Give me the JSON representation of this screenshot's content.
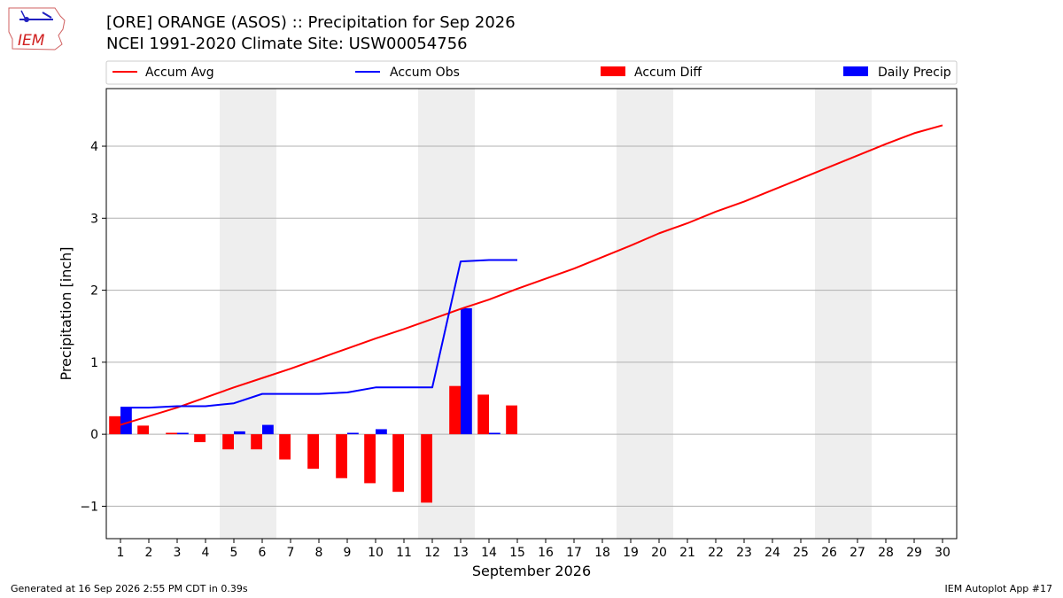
{
  "header": {
    "logo_text": "IEM",
    "title_line1": "[ORE] ORANGE (ASOS) :: Precipitation for Sep 2026",
    "title_line2": "NCEI 1991-2020 Climate Site: USW00054756"
  },
  "footer": {
    "left": "Generated at 16 Sep 2026 2:55 PM CDT in 0.39s",
    "right": "IEM Autoplot App #17"
  },
  "colors": {
    "avg": "#ff0000",
    "obs": "#0000ff",
    "diff": "#ff0000",
    "daily": "#0000ff",
    "weekend": "#eeeeee",
    "grid": "#b0b0b0"
  },
  "chart_data": {
    "type": "bar",
    "xlabel": "September 2026",
    "ylabel": "Precipitation [inch]",
    "xlim": [
      0.5,
      30.5
    ],
    "ylim": [
      -1.45,
      4.8
    ],
    "yticks": [
      -1,
      0,
      1,
      2,
      3,
      4
    ],
    "ytick_labels": [
      "−1",
      "0",
      "1",
      "2",
      "3",
      "4"
    ],
    "grid": true,
    "legend_placement": "top",
    "days": [
      1,
      2,
      3,
      4,
      5,
      6,
      7,
      8,
      9,
      10,
      11,
      12,
      13,
      14,
      15,
      16,
      17,
      18,
      19,
      20,
      21,
      22,
      23,
      24,
      25,
      26,
      27,
      28,
      29,
      30
    ],
    "weekend_days": [
      5,
      6,
      12,
      13,
      19,
      20,
      26,
      27
    ],
    "series": [
      {
        "name": "Accum Avg",
        "type": "line",
        "x": [
          1,
          2,
          3,
          4,
          5,
          6,
          7,
          8,
          9,
          10,
          11,
          12,
          13,
          14,
          15,
          16,
          17,
          18,
          19,
          20,
          21,
          22,
          23,
          24,
          25,
          26,
          27,
          28,
          29,
          30
        ],
        "values": [
          0.13,
          0.25,
          0.37,
          0.51,
          0.65,
          0.78,
          0.91,
          1.05,
          1.19,
          1.33,
          1.46,
          1.6,
          1.74,
          1.87,
          2.02,
          2.16,
          2.3,
          2.46,
          2.62,
          2.79,
          2.93,
          3.09,
          3.23,
          3.39,
          3.55,
          3.71,
          3.87,
          4.03,
          4.18,
          4.29
        ]
      },
      {
        "name": "Accum Obs",
        "type": "line",
        "x": [
          1,
          2,
          3,
          4,
          5,
          6,
          7,
          8,
          9,
          10,
          11,
          12,
          13,
          14,
          15
        ],
        "values": [
          0.37,
          0.37,
          0.39,
          0.39,
          0.43,
          0.56,
          0.56,
          0.56,
          0.58,
          0.65,
          0.65,
          0.65,
          2.4,
          2.42,
          2.42
        ]
      },
      {
        "name": "Accum Diff",
        "type": "bar",
        "x": [
          1,
          2,
          3,
          4,
          5,
          6,
          7,
          8,
          9,
          10,
          11,
          12,
          13,
          14,
          15
        ],
        "values": [
          0.25,
          0.12,
          0.02,
          -0.11,
          -0.21,
          -0.21,
          -0.35,
          -0.48,
          -0.61,
          -0.68,
          -0.8,
          -0.95,
          0.67,
          0.55,
          0.4
        ]
      },
      {
        "name": "Daily Precip",
        "type": "bar",
        "x": [
          1,
          2,
          3,
          4,
          5,
          6,
          7,
          8,
          9,
          10,
          11,
          12,
          13,
          14,
          15
        ],
        "values": [
          0.37,
          0.0,
          0.02,
          0.0,
          0.04,
          0.13,
          0.0,
          0.0,
          0.02,
          0.07,
          0.0,
          0.0,
          1.75,
          0.02,
          0.0
        ]
      }
    ]
  }
}
